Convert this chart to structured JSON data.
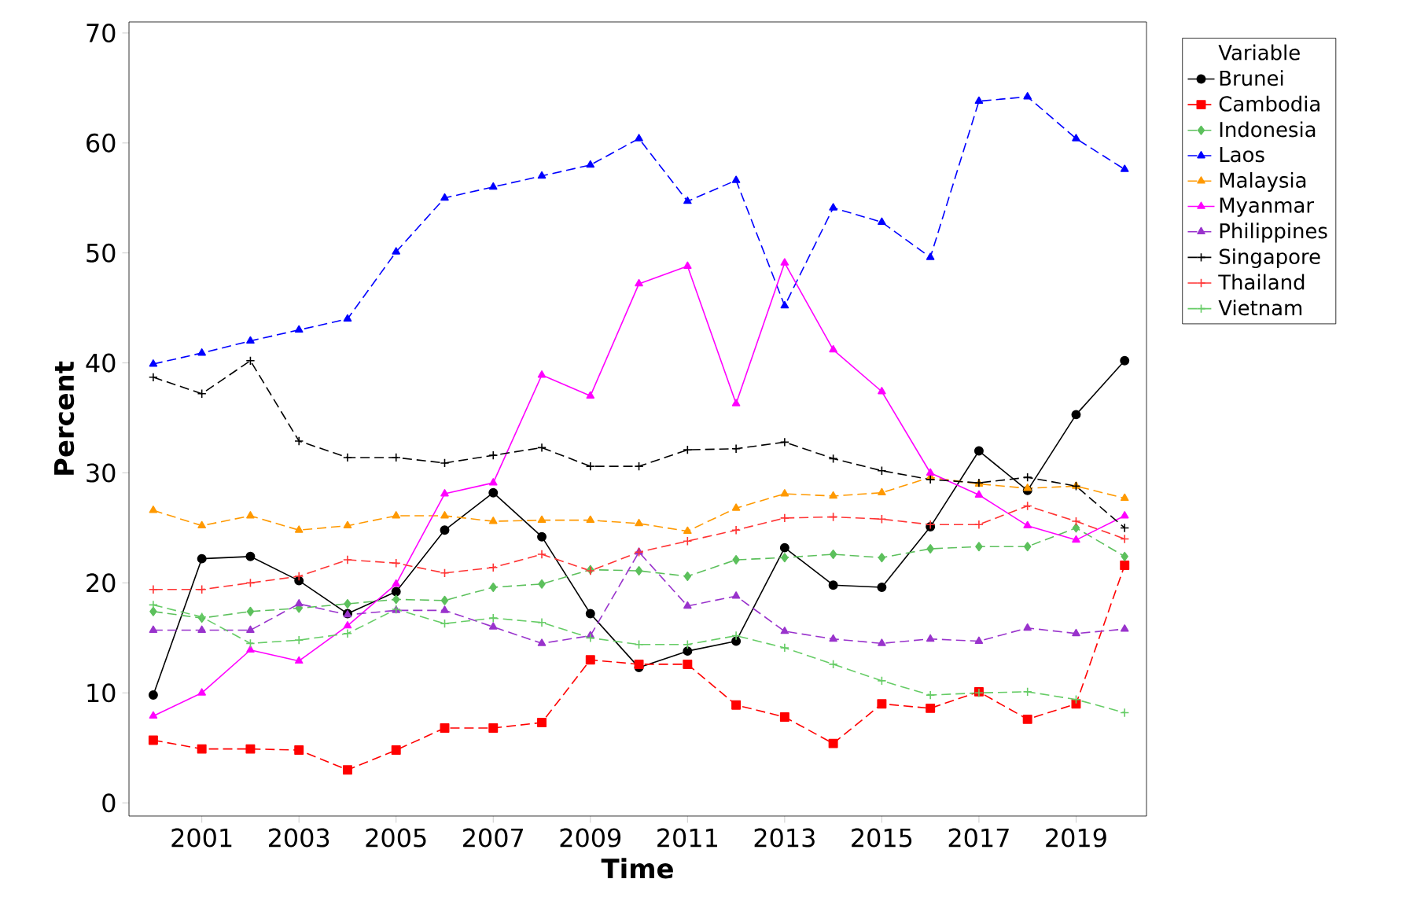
{
  "chart_data": {
    "type": "line",
    "xlabel": "Time",
    "ylabel": "Percent",
    "legend_title": "Variable",
    "legend": "right",
    "grid": false,
    "x": [
      2000,
      2001,
      2002,
      2003,
      2004,
      2005,
      2006,
      2007,
      2008,
      2009,
      2010,
      2011,
      2012,
      2013,
      2014,
      2015,
      2016,
      2017,
      2018,
      2019,
      2020
    ],
    "xlim": [
      1999.5,
      2020.45
    ],
    "xticks": [
      2001,
      2003,
      2005,
      2007,
      2009,
      2011,
      2013,
      2015,
      2017,
      2019
    ],
    "ylim": [
      -1.2,
      71
    ],
    "yticks": [
      0,
      10,
      20,
      30,
      40,
      50,
      60,
      70
    ],
    "series": [
      {
        "name": "Brunei",
        "color": "#000000",
        "marker": "circle",
        "line_style": "solid",
        "values": [
          9.8,
          22.2,
          22.4,
          20.2,
          17.2,
          19.2,
          24.8,
          28.2,
          24.2,
          17.2,
          12.3,
          13.8,
          14.7,
          23.2,
          19.8,
          19.6,
          25.1,
          32.0,
          28.4,
          35.3,
          40.2
        ]
      },
      {
        "name": "Cambodia",
        "color": "#ff0000",
        "marker": "square",
        "line_style": "dashed",
        "values": [
          5.7,
          4.9,
          4.9,
          4.8,
          3.0,
          4.8,
          6.8,
          6.8,
          7.3,
          13.0,
          12.6,
          12.6,
          8.9,
          7.8,
          5.4,
          9.0,
          8.6,
          10.1,
          7.6,
          9.0,
          21.6
        ]
      },
      {
        "name": "Indonesia",
        "color": "#5cc05c",
        "marker": "diamond",
        "line_style": "dashed",
        "values": [
          17.4,
          16.8,
          17.4,
          17.7,
          18.1,
          18.5,
          18.4,
          19.6,
          19.9,
          21.2,
          21.1,
          20.6,
          22.1,
          22.3,
          22.6,
          22.3,
          23.1,
          23.3,
          23.3,
          25.0,
          22.4
        ]
      },
      {
        "name": "Laos",
        "color": "#0000ff",
        "marker": "triangle",
        "line_style": "dashed",
        "values": [
          39.9,
          40.9,
          42.0,
          43.0,
          44.0,
          50.1,
          55.0,
          56.0,
          57.0,
          58.0,
          60.4,
          54.7,
          56.6,
          45.2,
          54.1,
          52.8,
          49.6,
          63.8,
          64.2,
          60.4,
          57.6
        ]
      },
      {
        "name": "Malaysia",
        "color": "#ff9900",
        "marker": "triangle",
        "line_style": "dashed",
        "values": [
          26.6,
          25.2,
          26.1,
          24.8,
          25.2,
          26.1,
          26.1,
          25.6,
          25.7,
          25.7,
          25.4,
          24.7,
          26.8,
          28.1,
          27.9,
          28.2,
          29.6,
          29.0,
          28.6,
          28.8,
          27.7
        ]
      },
      {
        "name": "Myanmar",
        "color": "#ff00ff",
        "marker": "triangle",
        "line_style": "solid",
        "values": [
          7.9,
          10.0,
          13.9,
          12.9,
          16.1,
          19.9,
          28.1,
          29.1,
          38.9,
          37.0,
          47.2,
          48.8,
          36.3,
          49.1,
          41.2,
          37.4,
          30.0,
          28.0,
          25.2,
          23.9,
          26.1
        ]
      },
      {
        "name": "Philippines",
        "color": "#9933cc",
        "marker": "triangle",
        "line_style": "dashed",
        "values": [
          15.7,
          15.7,
          15.7,
          18.1,
          17.1,
          17.5,
          17.5,
          16.0,
          14.5,
          15.2,
          22.8,
          17.9,
          18.8,
          15.6,
          14.9,
          14.5,
          14.9,
          14.7,
          15.9,
          15.4,
          15.8
        ]
      },
      {
        "name": "Singapore",
        "color": "#000000",
        "marker": "cross",
        "line_style": "dashed",
        "values": [
          38.7,
          37.2,
          40.2,
          32.9,
          31.4,
          31.4,
          30.9,
          31.6,
          32.3,
          30.6,
          30.6,
          32.1,
          32.2,
          32.8,
          31.3,
          30.2,
          29.4,
          29.1,
          29.6,
          28.8,
          25.0
        ]
      },
      {
        "name": "Thailand",
        "color": "#ff3333",
        "marker": "cross",
        "line_style": "dashed",
        "values": [
          19.4,
          19.4,
          20.0,
          20.6,
          22.1,
          21.8,
          20.9,
          21.4,
          22.6,
          21.1,
          22.8,
          23.8,
          24.8,
          25.9,
          26.0,
          25.8,
          25.3,
          25.3,
          27.0,
          25.6,
          24.0
        ]
      },
      {
        "name": "Vietnam",
        "color": "#66cc66",
        "marker": "cross",
        "line_style": "dashed",
        "values": [
          18.0,
          16.9,
          14.5,
          14.8,
          15.4,
          17.6,
          16.3,
          16.8,
          16.4,
          15.0,
          14.4,
          14.4,
          15.2,
          14.1,
          12.6,
          11.1,
          9.8,
          10.0,
          10.1,
          9.4,
          8.2
        ]
      }
    ]
  }
}
